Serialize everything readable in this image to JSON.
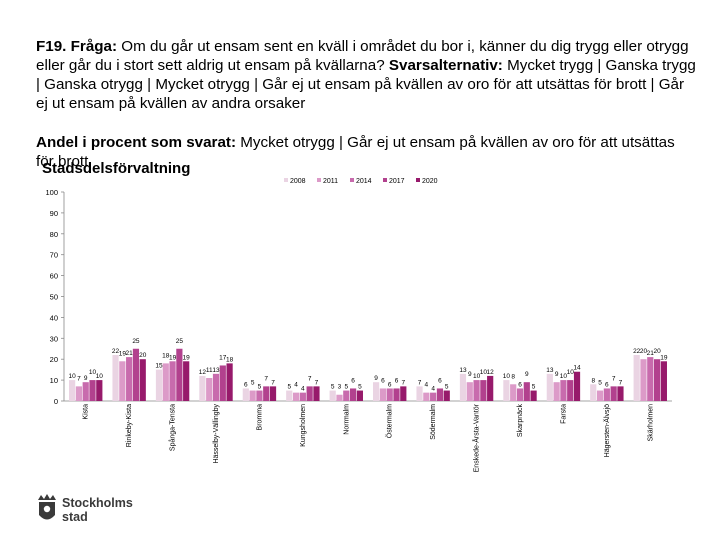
{
  "question": {
    "number": "F19.",
    "label": "Fråga:",
    "text": " Om du går ut ensam sent en kväll i området du bor i, känner du dig trygg eller otrygg eller går du i stort sett aldrig ut ensam på kvällarna?",
    "alt_label": "Svarsalternativ:",
    "alt_text": " Mycket trygg | Ganska trygg | Ganska otrygg | Mycket otrygg | Går ej ut ensam på kvällen av oro för att utsättas för brott | Går ej ut ensam på kvällen av andra orsaker"
  },
  "subtitle": {
    "label": "Andel i procent som svarat:",
    "text": " Mycket otrygg | Går ej ut ensam på kvällen av oro för att utsättas för brott"
  },
  "logo": {
    "line1": "Stockholms",
    "line2": "stad"
  },
  "chart_data": {
    "type": "bar",
    "title": "Stadsdelsförvaltning",
    "xlabel": "",
    "ylabel": "",
    "ylim": [
      0,
      100
    ],
    "yticks": [
      "0",
      "10",
      "20",
      "30",
      "40",
      "50",
      "60",
      "70",
      "80",
      "90",
      "100"
    ],
    "legend_position": "top",
    "categories": [
      "Kista",
      "Rinkeby-Kista",
      "Spånga-Tensta",
      "Hässelby-Vällingby",
      "Bromma",
      "Kungsholmen",
      "Norrmalm",
      "Östermalm",
      "Södermalm",
      "Enskede-Årsta-Vantör",
      "Skarpnäck",
      "Farsta",
      "Hägersten-Älvsjö",
      "Skärholmen"
    ],
    "series": [
      {
        "name": "2008",
        "color": "#ead4e3",
        "values": [
          10,
          22,
          15,
          12,
          6,
          5,
          5,
          9,
          7,
          13,
          10,
          13,
          8,
          22
        ]
      },
      {
        "name": "2011",
        "color": "#dc9ac8",
        "values": [
          7,
          19,
          18,
          11,
          5,
          4,
          3,
          6,
          4,
          9,
          8,
          9,
          5,
          20
        ]
      },
      {
        "name": "2014",
        "color": "#c86bad",
        "values": [
          9,
          21,
          19,
          13,
          5,
          4,
          5,
          6,
          4,
          10,
          6,
          10,
          6,
          21
        ]
      },
      {
        "name": "2017",
        "color": "#b2418e",
        "values": [
          10,
          25,
          25,
          17,
          7,
          7,
          6,
          6,
          6,
          10,
          9,
          10,
          7,
          20
        ]
      },
      {
        "name": "2020",
        "color": "#971a6b",
        "values": [
          10,
          20,
          19,
          18,
          7,
          7,
          5,
          7,
          5,
          12,
          5,
          14,
          7,
          19
        ]
      }
    ]
  }
}
